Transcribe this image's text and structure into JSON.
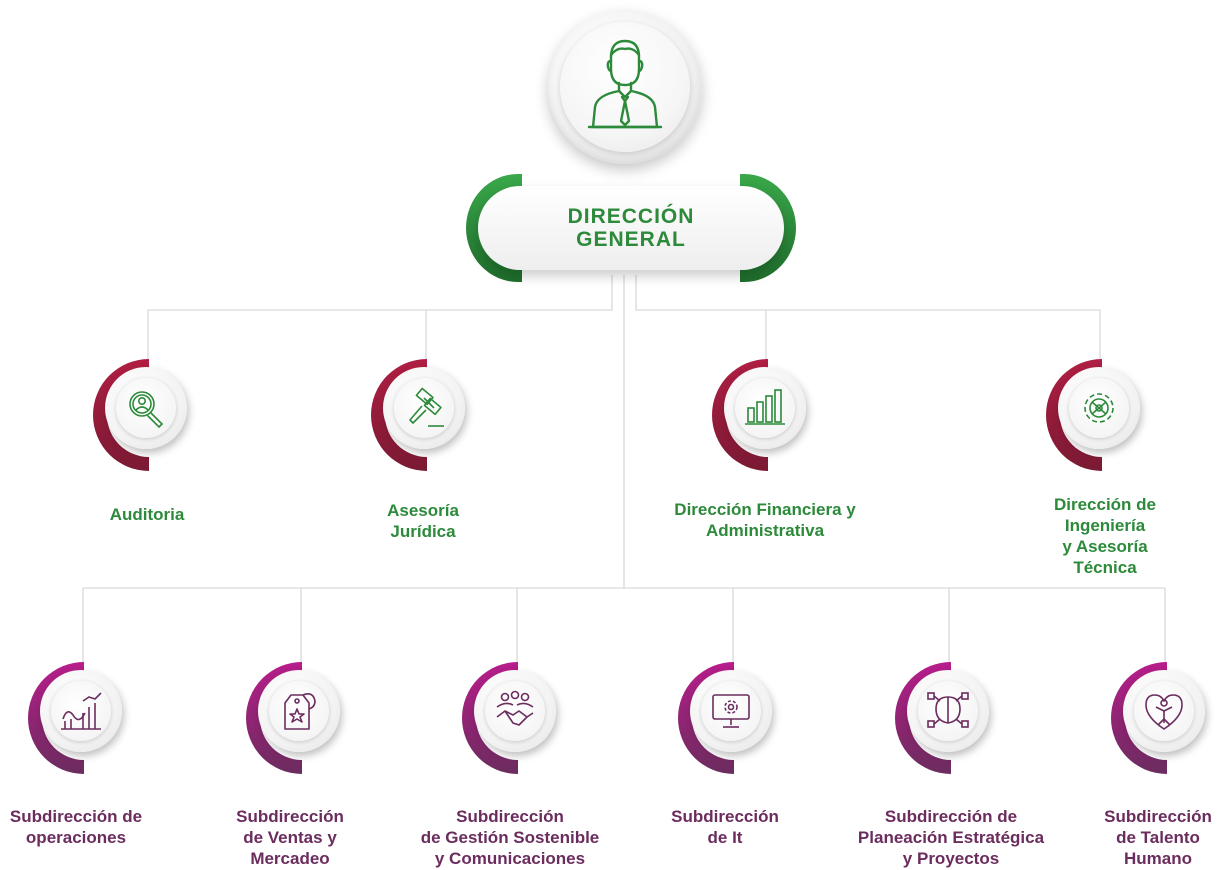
{
  "root": {
    "title": "DIRECCIÓN\nGENERAL",
    "icon": "person-tie-icon"
  },
  "level2": [
    {
      "label": "Auditoria",
      "icon": "audit-magnifier-icon"
    },
    {
      "label": "Asesoría\nJurídica",
      "icon": "gavel-icon"
    },
    {
      "label": "Dirección Financiera y\nAdministrativa",
      "icon": "bar-chart-icon"
    },
    {
      "label": "Dirección de Ingeniería\ny Asesoría Técnica",
      "icon": "gears-icon"
    }
  ],
  "level3": [
    {
      "label": "Subdirección de\noperaciones",
      "icon": "operations-chart-icon"
    },
    {
      "label": "Subdirección\nde Ventas y\nMercadeo",
      "icon": "price-tag-star-icon"
    },
    {
      "label": "Subdirección\nde Gestión Sostenible\ny Comunicaciones",
      "icon": "handshake-team-icon"
    },
    {
      "label": "Subdirección\nde It",
      "icon": "monitor-gear-icon"
    },
    {
      "label": "Subdirección de\nPlaneación Estratégica\ny Proyectos",
      "icon": "strategy-brain-icon"
    },
    {
      "label": "Subdirección\nde Talento\nHumano",
      "icon": "heart-person-icon"
    }
  ],
  "colors": {
    "green": "#2c8a3a",
    "crimson": "#b01e43",
    "purple": "#6b2c5e",
    "magenta": "#b81d8b",
    "connector": "#d9d9d9"
  }
}
